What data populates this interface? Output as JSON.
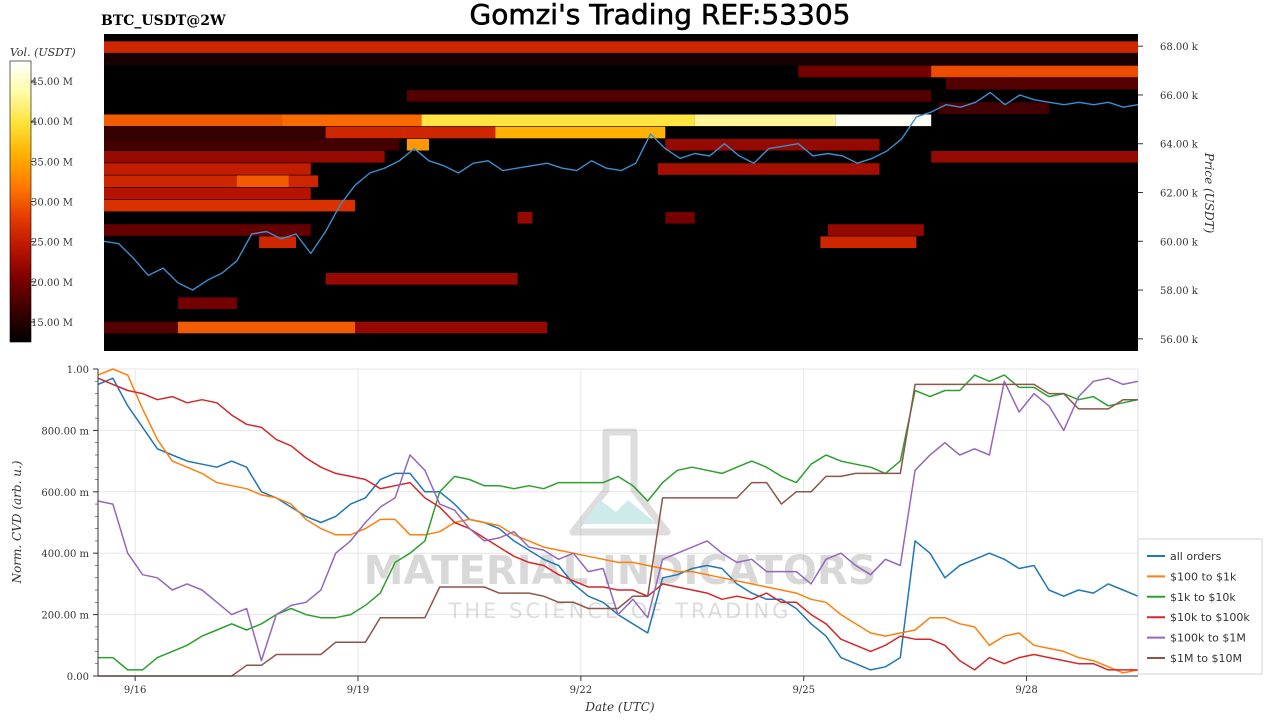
{
  "title": "Gomzi's Trading REF:53305",
  "symbol_label": "BTC_USDT@2W",
  "watermark": {
    "main": "MATERIAL INDICATORS",
    "sub": "THE SCIENCE OF TRADING"
  },
  "chart_data": [
    {
      "type": "heatmap",
      "panel": "top",
      "colorbar_label": "Vol. (USDT)",
      "colorbar_ticks": [
        "45.00 M",
        "40.00 M",
        "35.00 M",
        "30.00 M",
        "25.00 M",
        "20.00 M",
        "15.00 M"
      ],
      "colorbar_values": [
        45,
        40,
        35,
        30,
        25,
        20,
        15
      ],
      "colorbar_range": [
        12.5,
        47.5
      ],
      "colormap": [
        "#000000",
        "#3a0000",
        "#7a0000",
        "#b81400",
        "#e63c00",
        "#ff7a00",
        "#ffb000",
        "#ffe23a",
        "#fffba8",
        "#ffffff"
      ],
      "ylabel": "Price (USDT)",
      "y_ticks": [
        "68.00 k",
        "66.00 k",
        "64.00 k",
        "62.00 k",
        "60.00 k",
        "58.00 k",
        "56.00 k"
      ],
      "y_tick_values": [
        68000,
        66000,
        64000,
        62000,
        60000,
        58000,
        56000
      ],
      "ylim": [
        55500,
        68500
      ],
      "xlim": [
        "2024-09-15T12:00",
        "2024-09-29T12:00"
      ],
      "grid": false,
      "price_series": {
        "color": "#3a8fd0",
        "x_days": [
          15.5,
          15.7,
          15.9,
          16.1,
          16.3,
          16.5,
          16.7,
          16.9,
          17.1,
          17.3,
          17.5,
          17.7,
          17.9,
          18.1,
          18.3,
          18.5,
          18.7,
          18.9,
          19.1,
          19.3,
          19.5,
          19.7,
          19.9,
          20.1,
          20.3,
          20.5,
          20.7,
          20.9,
          21.1,
          21.3,
          21.5,
          21.7,
          21.9,
          22.1,
          22.3,
          22.5,
          22.7,
          22.9,
          23.1,
          23.3,
          23.5,
          23.7,
          23.9,
          24.1,
          24.3,
          24.5,
          24.7,
          24.9,
          25.1,
          25.3,
          25.5,
          25.7,
          25.9,
          26.1,
          26.3,
          26.5,
          26.7,
          26.9,
          27.1,
          27.3,
          27.5,
          27.7,
          27.9,
          28.1,
          28.3,
          28.5,
          28.7,
          28.9,
          29.1,
          29.3,
          29.5
        ],
        "price": [
          60000,
          59900,
          59300,
          58600,
          58900,
          58300,
          58000,
          58400,
          58700,
          59200,
          60300,
          60400,
          60100,
          60300,
          59500,
          60400,
          61500,
          62300,
          62800,
          63000,
          63300,
          63800,
          63300,
          63100,
          62800,
          63200,
          63300,
          62900,
          63000,
          63100,
          63200,
          63000,
          62900,
          63300,
          63000,
          62900,
          63200,
          64400,
          63800,
          63400,
          63600,
          63500,
          64000,
          63500,
          63200,
          63800,
          63900,
          64000,
          63500,
          63600,
          63500,
          63200,
          63400,
          63700,
          64200,
          65100,
          65300,
          65600,
          65500,
          65700,
          66100,
          65600,
          66000,
          65800,
          65700,
          65600,
          65700,
          65600,
          65700,
          65500,
          65600
        ]
      },
      "bands": [
        {
          "price": 67950,
          "start": 15.5,
          "end": 29.5,
          "vol": 26
        },
        {
          "price": 67450,
          "start": 15.5,
          "end": 29.5,
          "vol": 14
        },
        {
          "price": 66950,
          "start": 24.9,
          "end": 29.5,
          "vol": 20
        },
        {
          "price": 66950,
          "start": 26.7,
          "end": 29.5,
          "vol": 29
        },
        {
          "price": 66450,
          "start": 26.9,
          "end": 29.5,
          "vol": 18
        },
        {
          "price": 65950,
          "start": 19.6,
          "end": 26.7,
          "vol": 18
        },
        {
          "price": 65450,
          "start": 26.8,
          "end": 28.3,
          "vol": 17
        },
        {
          "price": 64950,
          "start": 15.5,
          "end": 17.9,
          "vol": 30
        },
        {
          "price": 64950,
          "start": 17.9,
          "end": 19.8,
          "vol": 31
        },
        {
          "price": 64950,
          "start": 19.8,
          "end": 23.5,
          "vol": 40
        },
        {
          "price": 64950,
          "start": 23.5,
          "end": 25.4,
          "vol": 43
        },
        {
          "price": 64950,
          "start": 25.4,
          "end": 26.7,
          "vol": 47
        },
        {
          "price": 64450,
          "start": 15.5,
          "end": 18.5,
          "vol": 16
        },
        {
          "price": 64450,
          "start": 18.5,
          "end": 20.8,
          "vol": 26
        },
        {
          "price": 64450,
          "start": 20.8,
          "end": 23.1,
          "vol": 36
        },
        {
          "price": 63950,
          "start": 15.5,
          "end": 19.5,
          "vol": 17
        },
        {
          "price": 63950,
          "start": 19.6,
          "end": 19.9,
          "vol": 34
        },
        {
          "price": 63950,
          "start": 23.1,
          "end": 26.0,
          "vol": 22
        },
        {
          "price": 63450,
          "start": 15.5,
          "end": 19.3,
          "vol": 22
        },
        {
          "price": 63450,
          "start": 26.7,
          "end": 29.5,
          "vol": 22
        },
        {
          "price": 62950,
          "start": 15.5,
          "end": 18.3,
          "vol": 25
        },
        {
          "price": 62950,
          "start": 23.0,
          "end": 26.0,
          "vol": 23
        },
        {
          "price": 62450,
          "start": 15.5,
          "end": 18.4,
          "vol": 26
        },
        {
          "price": 62450,
          "start": 17.3,
          "end": 18.0,
          "vol": 30
        },
        {
          "price": 61950,
          "start": 15.5,
          "end": 18.3,
          "vol": 24
        },
        {
          "price": 61450,
          "start": 15.5,
          "end": 18.9,
          "vol": 27
        },
        {
          "price": 60950,
          "start": 21.1,
          "end": 21.3,
          "vol": 22
        },
        {
          "price": 60950,
          "start": 23.1,
          "end": 23.5,
          "vol": 20
        },
        {
          "price": 60450,
          "start": 15.5,
          "end": 18.3,
          "vol": 19
        },
        {
          "price": 60450,
          "start": 25.3,
          "end": 26.6,
          "vol": 22
        },
        {
          "price": 59950,
          "start": 17.6,
          "end": 18.1,
          "vol": 26
        },
        {
          "price": 59950,
          "start": 25.2,
          "end": 26.5,
          "vol": 26
        },
        {
          "price": 58450,
          "start": 18.5,
          "end": 21.1,
          "vol": 22
        },
        {
          "price": 57450,
          "start": 16.5,
          "end": 17.3,
          "vol": 20
        },
        {
          "price": 56450,
          "start": 15.5,
          "end": 16.5,
          "vol": 18
        },
        {
          "price": 56450,
          "start": 16.5,
          "end": 18.9,
          "vol": 30
        },
        {
          "price": 56450,
          "start": 18.9,
          "end": 21.5,
          "vol": 22
        }
      ]
    },
    {
      "type": "line",
      "panel": "bottom",
      "xlabel": "Date (UTC)",
      "ylabel": "Norm. CVD (arb. u.)",
      "x_ticks": [
        "9/16",
        "9/19",
        "9/22",
        "9/25",
        "9/28"
      ],
      "x_tick_values": [
        "2024-09-16",
        "2024-09-19",
        "2024-09-22",
        "2024-09-25",
        "2024-09-28"
      ],
      "y_ticks": [
        "0.00",
        "200.00 m",
        "400.00 m",
        "600.00 m",
        "800.00 m",
        "1.00"
      ],
      "y_tick_values": [
        0,
        0.2,
        0.4,
        0.6,
        0.8,
        1.0
      ],
      "ylim": [
        0,
        1
      ],
      "xlim": [
        "2024-09-15T12:00",
        "2024-09-29T12:00"
      ],
      "grid": true,
      "legend_position": "bottom-right",
      "x_days": [
        15.5,
        15.7,
        15.9,
        16.1,
        16.3,
        16.5,
        16.7,
        16.9,
        17.1,
        17.3,
        17.5,
        17.7,
        17.9,
        18.1,
        18.3,
        18.5,
        18.7,
        18.9,
        19.1,
        19.3,
        19.5,
        19.7,
        19.9,
        20.1,
        20.3,
        20.5,
        20.7,
        20.9,
        21.1,
        21.3,
        21.5,
        21.7,
        21.9,
        22.1,
        22.3,
        22.5,
        22.7,
        22.9,
        23.1,
        23.3,
        23.5,
        23.7,
        23.9,
        24.1,
        24.3,
        24.5,
        24.7,
        24.9,
        25.1,
        25.3,
        25.5,
        25.7,
        25.9,
        26.1,
        26.3,
        26.5,
        26.7,
        26.9,
        27.1,
        27.3,
        27.5,
        27.7,
        27.9,
        28.1,
        28.3,
        28.5,
        28.7,
        28.9,
        29.1,
        29.3,
        29.5
      ],
      "series": [
        {
          "name": "all orders",
          "color": "#1f77b4",
          "values": [
            0.95,
            0.97,
            0.88,
            0.81,
            0.74,
            0.72,
            0.7,
            0.69,
            0.68,
            0.7,
            0.68,
            0.6,
            0.58,
            0.55,
            0.52,
            0.5,
            0.52,
            0.56,
            0.58,
            0.64,
            0.66,
            0.66,
            0.6,
            0.6,
            0.56,
            0.51,
            0.5,
            0.48,
            0.44,
            0.41,
            0.38,
            0.36,
            0.3,
            0.26,
            0.24,
            0.2,
            0.17,
            0.14,
            0.32,
            0.33,
            0.35,
            0.36,
            0.35,
            0.3,
            0.27,
            0.25,
            0.25,
            0.22,
            0.17,
            0.13,
            0.06,
            0.04,
            0.02,
            0.03,
            0.06,
            0.44,
            0.4,
            0.32,
            0.36,
            0.38,
            0.4,
            0.38,
            0.35,
            0.36,
            0.28,
            0.26,
            0.28,
            0.27,
            0.3,
            0.28,
            0.26
          ]
        },
        {
          "name": "$100 to $1k",
          "color": "#ff7f0e",
          "values": [
            0.98,
            1.0,
            0.98,
            0.87,
            0.77,
            0.7,
            0.68,
            0.66,
            0.63,
            0.62,
            0.61,
            0.59,
            0.58,
            0.56,
            0.51,
            0.48,
            0.46,
            0.46,
            0.48,
            0.51,
            0.51,
            0.46,
            0.46,
            0.47,
            0.5,
            0.51,
            0.5,
            0.49,
            0.46,
            0.44,
            0.42,
            0.41,
            0.4,
            0.39,
            0.38,
            0.37,
            0.37,
            0.36,
            0.35,
            0.34,
            0.34,
            0.33,
            0.32,
            0.31,
            0.3,
            0.29,
            0.28,
            0.27,
            0.25,
            0.24,
            0.2,
            0.17,
            0.14,
            0.13,
            0.14,
            0.15,
            0.19,
            0.19,
            0.17,
            0.16,
            0.1,
            0.13,
            0.14,
            0.1,
            0.09,
            0.08,
            0.06,
            0.05,
            0.03,
            0.01,
            0.02
          ]
        },
        {
          "name": "$1k to $10k",
          "color": "#2ca02c",
          "values": [
            0.06,
            0.06,
            0.02,
            0.02,
            0.06,
            0.08,
            0.1,
            0.13,
            0.15,
            0.17,
            0.15,
            0.17,
            0.2,
            0.22,
            0.2,
            0.19,
            0.19,
            0.2,
            0.23,
            0.27,
            0.37,
            0.4,
            0.44,
            0.6,
            0.65,
            0.64,
            0.62,
            0.62,
            0.61,
            0.62,
            0.61,
            0.63,
            0.63,
            0.63,
            0.63,
            0.65,
            0.62,
            0.57,
            0.63,
            0.67,
            0.68,
            0.67,
            0.66,
            0.68,
            0.7,
            0.68,
            0.65,
            0.63,
            0.69,
            0.72,
            0.7,
            0.69,
            0.68,
            0.66,
            0.7,
            0.93,
            0.91,
            0.93,
            0.93,
            0.98,
            0.96,
            0.98,
            0.94,
            0.94,
            0.91,
            0.92,
            0.9,
            0.91,
            0.88,
            0.89,
            0.9
          ]
        },
        {
          "name": "$10k to $100k",
          "color": "#d62728",
          "values": [
            0.97,
            0.95,
            0.93,
            0.92,
            0.9,
            0.91,
            0.89,
            0.9,
            0.89,
            0.85,
            0.82,
            0.81,
            0.77,
            0.75,
            0.71,
            0.68,
            0.66,
            0.65,
            0.64,
            0.61,
            0.62,
            0.63,
            0.58,
            0.55,
            0.5,
            0.48,
            0.45,
            0.42,
            0.39,
            0.37,
            0.36,
            0.33,
            0.31,
            0.29,
            0.29,
            0.28,
            0.28,
            0.26,
            0.3,
            0.29,
            0.28,
            0.27,
            0.25,
            0.26,
            0.25,
            0.27,
            0.24,
            0.24,
            0.2,
            0.17,
            0.12,
            0.1,
            0.08,
            0.1,
            0.13,
            0.12,
            0.12,
            0.1,
            0.05,
            0.02,
            0.06,
            0.04,
            0.06,
            0.07,
            0.06,
            0.05,
            0.04,
            0.04,
            0.02,
            0.02,
            0.02
          ]
        },
        {
          "name": "$100k to $1M",
          "color": "#9467bd",
          "values": [
            0.57,
            0.56,
            0.4,
            0.33,
            0.32,
            0.28,
            0.3,
            0.28,
            0.24,
            0.2,
            0.22,
            0.05,
            0.2,
            0.23,
            0.24,
            0.28,
            0.4,
            0.44,
            0.5,
            0.55,
            0.58,
            0.72,
            0.67,
            0.56,
            0.54,
            0.48,
            0.44,
            0.45,
            0.47,
            0.42,
            0.41,
            0.38,
            0.4,
            0.34,
            0.35,
            0.2,
            0.25,
            0.19,
            0.38,
            0.4,
            0.42,
            0.44,
            0.4,
            0.37,
            0.38,
            0.34,
            0.34,
            0.34,
            0.3,
            0.38,
            0.4,
            0.36,
            0.33,
            0.38,
            0.36,
            0.67,
            0.72,
            0.76,
            0.72,
            0.74,
            0.72,
            0.96,
            0.86,
            0.92,
            0.88,
            0.8,
            0.91,
            0.96,
            0.97,
            0.95,
            0.96
          ]
        },
        {
          "name": "$1M to $10M",
          "color": "#8c564b",
          "values": [
            0.0,
            0.0,
            0.0,
            0.0,
            0.0,
            0.0,
            0.0,
            0.0,
            0.0,
            0.0,
            0.035,
            0.035,
            0.07,
            0.07,
            0.07,
            0.07,
            0.11,
            0.11,
            0.11,
            0.19,
            0.19,
            0.19,
            0.19,
            0.29,
            0.29,
            0.29,
            0.29,
            0.27,
            0.27,
            0.27,
            0.26,
            0.24,
            0.24,
            0.22,
            0.22,
            0.22,
            0.26,
            0.26,
            0.58,
            0.58,
            0.58,
            0.58,
            0.58,
            0.58,
            0.63,
            0.63,
            0.56,
            0.6,
            0.6,
            0.65,
            0.65,
            0.66,
            0.66,
            0.66,
            0.66,
            0.95,
            0.95,
            0.95,
            0.95,
            0.95,
            0.95,
            0.95,
            0.95,
            0.95,
            0.92,
            0.92,
            0.87,
            0.87,
            0.87,
            0.9,
            0.9
          ]
        }
      ]
    }
  ]
}
